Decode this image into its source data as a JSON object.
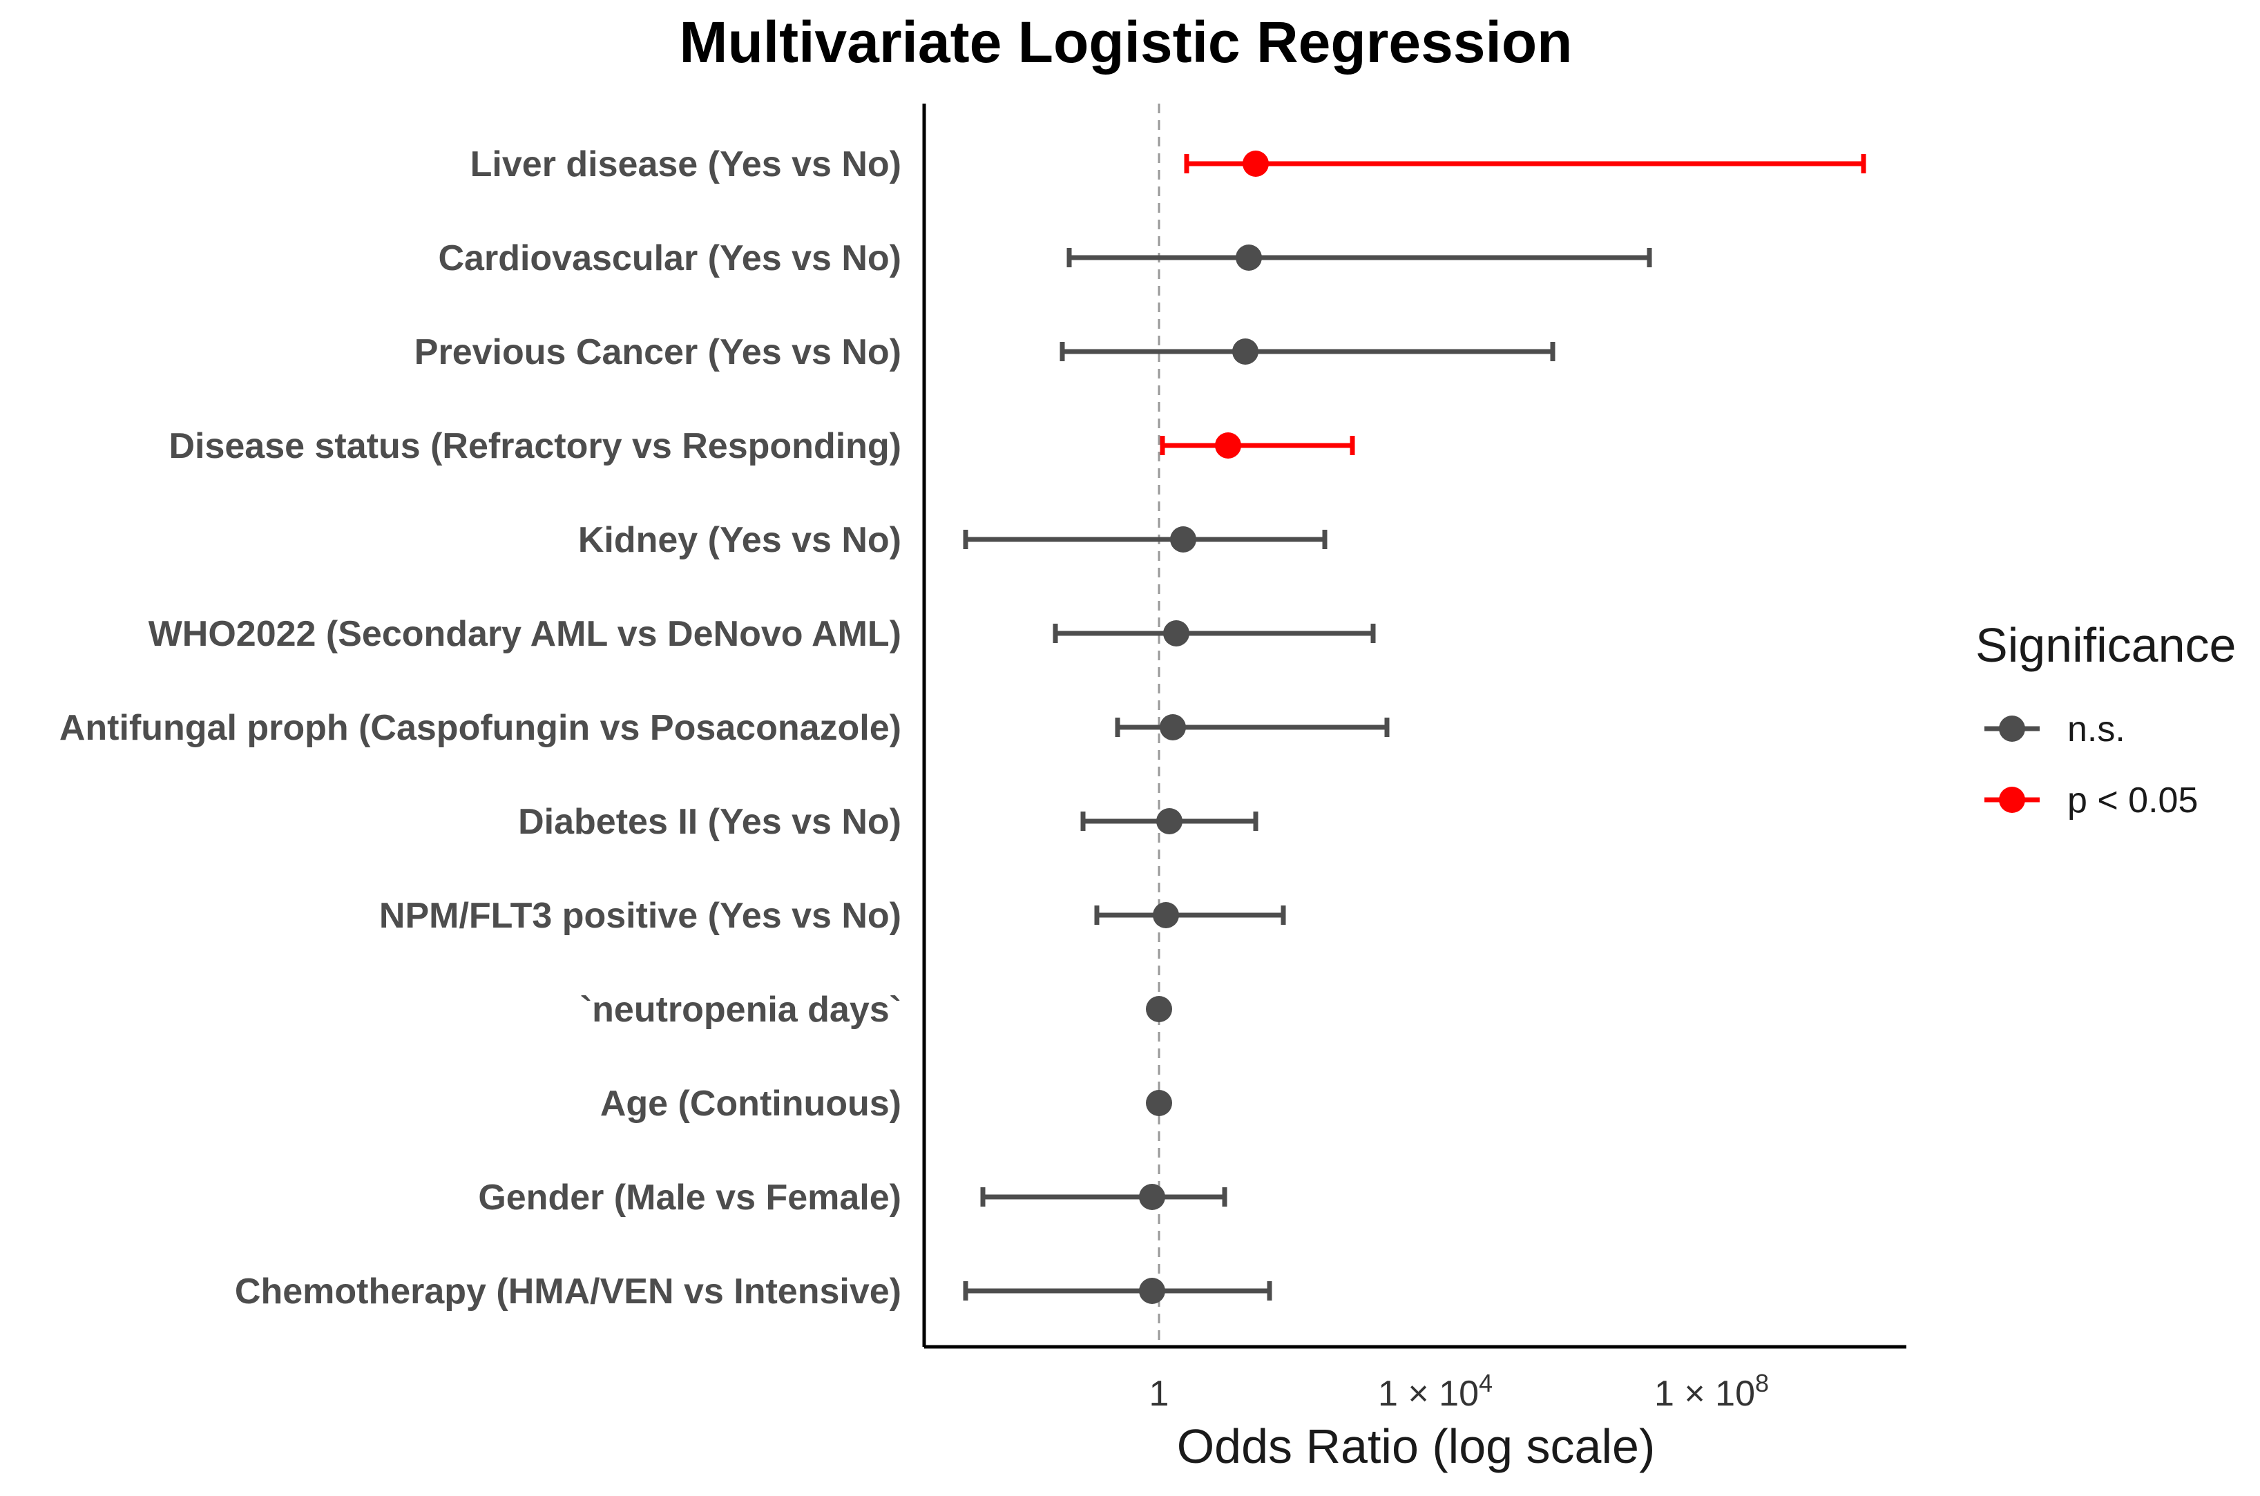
{
  "chart_data": {
    "type": "forest",
    "title": "Multivariate Logistic Regression",
    "xlabel": "Odds Ratio (log scale)",
    "ylabel": "",
    "x_scale": "log10",
    "xlim_log10": [
      -3.4,
      10.8
    ],
    "reference_line": 1,
    "xticks": [
      {
        "value": 1,
        "label": "1",
        "sup": ""
      },
      {
        "value": 10000,
        "label": "1 × 10",
        "sup": "4"
      },
      {
        "value": 100000000,
        "label": "1 × 10",
        "sup": "8"
      }
    ],
    "legend": {
      "title": "Significance",
      "position": "right",
      "entries": [
        {
          "label": "n.s.",
          "color": "#4d4d4d"
        },
        {
          "label": "p < 0.05",
          "color": "#ff0000"
        }
      ]
    },
    "colors": {
      "ns": "#4d4d4d",
      "sig": "#ff0000",
      "ref_line": "#999999",
      "axis": "#000000"
    },
    "series": [
      {
        "label": "Liver disease (Yes vs No)",
        "or_log10": 1.4,
        "ci_low_log10": 0.4,
        "ci_high_log10": 10.2,
        "significant": true
      },
      {
        "label": "Cardiovascular (Yes vs No)",
        "or_log10": 1.3,
        "ci_low_log10": -1.3,
        "ci_high_log10": 7.1,
        "significant": false
      },
      {
        "label": "Previous Cancer (Yes vs No)",
        "or_log10": 1.25,
        "ci_low_log10": -1.4,
        "ci_high_log10": 5.7,
        "significant": false
      },
      {
        "label": "Disease status (Refractory vs Responding)",
        "or_log10": 1.0,
        "ci_low_log10": 0.05,
        "ci_high_log10": 2.8,
        "significant": true
      },
      {
        "label": "Kidney (Yes vs No)",
        "or_log10": 0.35,
        "ci_low_log10": -2.8,
        "ci_high_log10": 2.4,
        "significant": false
      },
      {
        "label": "WHO2022 (Secondary AML vs DeNovo AML)",
        "or_log10": 0.25,
        "ci_low_log10": -1.5,
        "ci_high_log10": 3.1,
        "significant": false
      },
      {
        "label": "Antifungal proph (Caspofungin vs Posaconazole)",
        "or_log10": 0.2,
        "ci_low_log10": -0.6,
        "ci_high_log10": 3.3,
        "significant": false
      },
      {
        "label": "Diabetes II (Yes vs No)",
        "or_log10": 0.15,
        "ci_low_log10": -1.1,
        "ci_high_log10": 1.4,
        "significant": false
      },
      {
        "label": "NPM/FLT3 positive (Yes vs No)",
        "or_log10": 0.1,
        "ci_low_log10": -0.9,
        "ci_high_log10": 1.8,
        "significant": false
      },
      {
        "label": "`neutropenia days`",
        "or_log10": 0.0,
        "ci_low_log10": 0.0,
        "ci_high_log10": 0.0,
        "significant": false
      },
      {
        "label": "Age (Continuous)",
        "or_log10": 0.0,
        "ci_low_log10": 0.0,
        "ci_high_log10": 0.0,
        "significant": false
      },
      {
        "label": "Gender (Male vs Female)",
        "or_log10": -0.1,
        "ci_low_log10": -2.55,
        "ci_high_log10": 0.95,
        "significant": false
      },
      {
        "label": "Chemotherapy (HMA/VEN vs Intensive)",
        "or_log10": -0.1,
        "ci_low_log10": -2.8,
        "ci_high_log10": 1.6,
        "significant": false
      }
    ]
  }
}
